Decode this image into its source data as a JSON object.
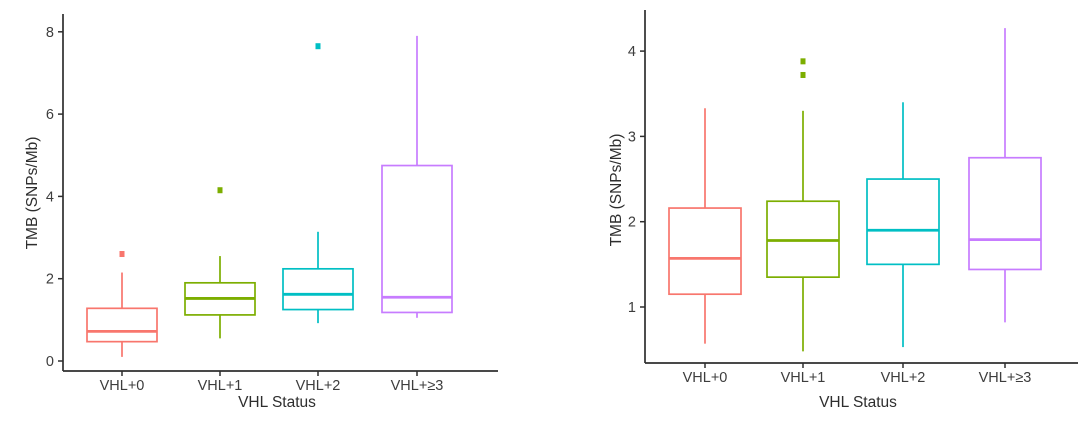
{
  "page": {
    "background": "#ffffff"
  },
  "chart_data": [
    {
      "id": "left-panel",
      "type": "boxplot",
      "title": "",
      "xlabel": "VHL Status",
      "ylabel": "TMB (SNPs/Mb)",
      "categories": [
        "VHL+0",
        "VHL+1",
        "VHL+2",
        "VHL+≥3"
      ],
      "colors": [
        "#F8766D",
        "#7CAE00",
        "#00BFC4",
        "#C77CFF"
      ],
      "yticks": [
        0,
        2,
        4,
        6,
        8
      ],
      "ylim": [
        -0.25,
        8.35
      ],
      "grid": false,
      "legend": "none",
      "boxes": [
        {
          "category": "VHL+0",
          "min": 0.1,
          "q1": 0.47,
          "median": 0.72,
          "q3": 1.28,
          "max": 2.15,
          "outliers": [
            2.6
          ]
        },
        {
          "category": "VHL+1",
          "min": 0.55,
          "q1": 1.12,
          "median": 1.52,
          "q3": 1.9,
          "max": 2.55,
          "outliers": [
            4.15
          ]
        },
        {
          "category": "VHL+2",
          "min": 0.92,
          "q1": 1.25,
          "median": 1.62,
          "q3": 2.24,
          "max": 3.14,
          "outliers": [
            7.65
          ]
        },
        {
          "category": "VHL+≥3",
          "min": 1.05,
          "q1": 1.18,
          "median": 1.55,
          "q3": 4.75,
          "max": 7.9,
          "outliers": []
        }
      ]
    },
    {
      "id": "right-panel",
      "type": "boxplot",
      "title": "",
      "xlabel": "VHL Status",
      "ylabel": "TMB (SNPs/Mb)",
      "categories": [
        "VHL+0",
        "VHL+1",
        "VHL+2",
        "VHL+≥3"
      ],
      "colors": [
        "#F8766D",
        "#7CAE00",
        "#00BFC4",
        "#C77CFF"
      ],
      "yticks": [
        1,
        2,
        3,
        4
      ],
      "ylim": [
        0.3,
        4.5
      ],
      "grid": false,
      "legend": "none",
      "boxes": [
        {
          "category": "VHL+0",
          "min": 0.57,
          "q1": 1.15,
          "median": 1.57,
          "q3": 2.16,
          "max": 3.33,
          "outliers": []
        },
        {
          "category": "VHL+1",
          "min": 0.48,
          "q1": 1.35,
          "median": 1.78,
          "q3": 2.24,
          "max": 3.3,
          "outliers": [
            3.72,
            3.88
          ]
        },
        {
          "category": "VHL+2",
          "min": 0.53,
          "q1": 1.5,
          "median": 1.9,
          "q3": 2.5,
          "max": 3.4,
          "outliers": []
        },
        {
          "category": "VHL+≥3",
          "min": 0.82,
          "q1": 1.44,
          "median": 1.79,
          "q3": 2.75,
          "max": 4.27,
          "outliers": []
        }
      ]
    }
  ]
}
